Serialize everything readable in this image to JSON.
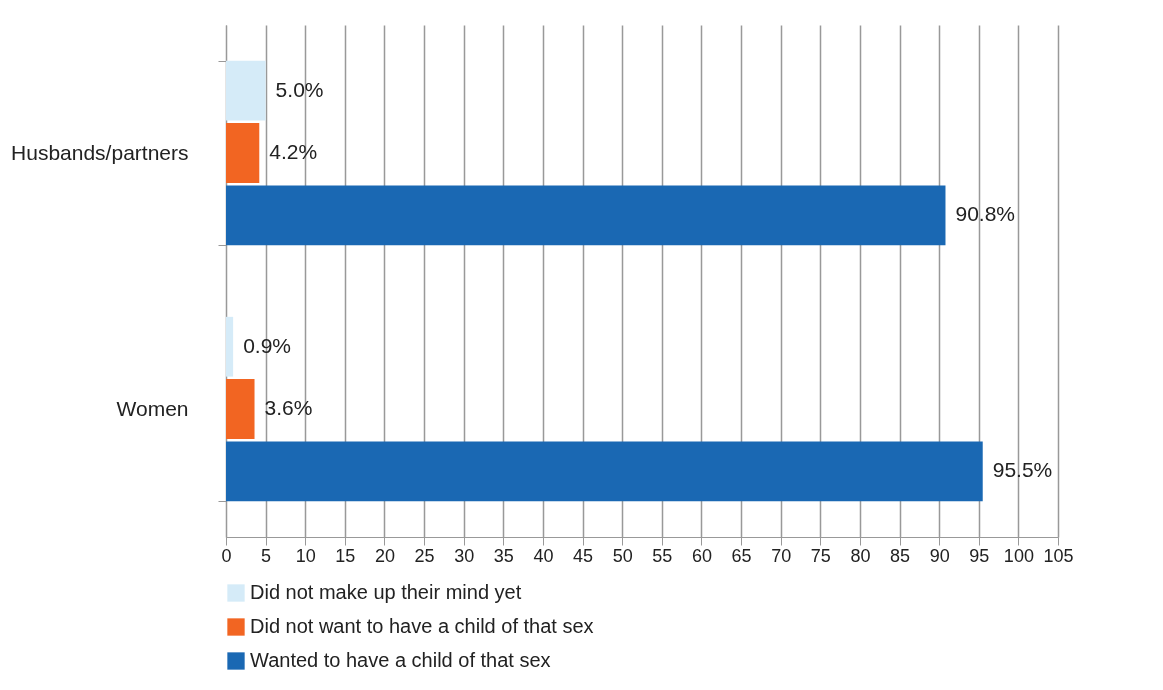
{
  "chart_data": {
    "type": "bar",
    "orientation": "horizontal",
    "categories": [
      "Husbands/partners",
      "Women"
    ],
    "series": [
      {
        "name": "Did not make up their mind yet",
        "color": "#d5ebf8",
        "values": [
          5.0,
          0.9
        ],
        "value_labels": [
          "5.0%",
          "0.9%"
        ]
      },
      {
        "name": "Did not want to have a child of that sex",
        "color": "#f26522",
        "values": [
          4.2,
          3.6
        ],
        "value_labels": [
          "4.2%",
          "3.6%"
        ]
      },
      {
        "name": "Wanted to have a child of that sex",
        "color": "#1a68b3",
        "values": [
          90.8,
          95.5
        ],
        "value_labels": [
          "90.8%",
          "95.5%"
        ]
      }
    ],
    "xlim": [
      0,
      105
    ],
    "xticks": [
      0,
      5,
      10,
      15,
      20,
      25,
      30,
      35,
      40,
      45,
      50,
      55,
      60,
      65,
      70,
      75,
      80,
      85,
      90,
      95,
      100,
      105
    ],
    "grid": "x",
    "legend": "bottom"
  }
}
